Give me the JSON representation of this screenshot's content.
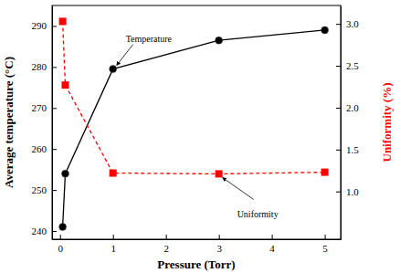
{
  "chart_data": {
    "type": "line",
    "x_label": "Pressure (Torr)",
    "y_label": "Average temperature (°C)",
    "y2_label": "Uniformity (%)",
    "x": [
      0.05,
      0.1,
      1,
      3,
      5
    ],
    "series": [
      {
        "name": "Temperature",
        "color": "#000000",
        "values": [
          241,
          254,
          279.5,
          286.5,
          289
        ],
        "marker": "circle",
        "line_style": "solid"
      },
      {
        "name": "Uniformity",
        "color": "#ff0000",
        "values": [
          3.03,
          2.27,
          1.22,
          1.21,
          1.23
        ],
        "marker": "square",
        "line_style": "dashed",
        "axis": "y2"
      }
    ],
    "annotations": [
      "Temperature",
      "Uniformity"
    ],
    "xlim": [
      -0.15,
      5.3
    ],
    "xticks": [
      0,
      1,
      2,
      3,
      4,
      5
    ],
    "ylim": [
      238,
      295
    ],
    "yticks": [
      240,
      250,
      260,
      270,
      280,
      290
    ],
    "y2lim": [
      0.43,
      3.22
    ],
    "y2ticks": [
      {
        "value": 1,
        "label": "1.0"
      },
      {
        "value": 1.5,
        "label": "1.5"
      },
      {
        "value": 2,
        "label": "2.0"
      },
      {
        "value": 2.5,
        "label": "2.5"
      },
      {
        "value": 3,
        "label": "3.0"
      }
    ],
    "grid": false
  }
}
